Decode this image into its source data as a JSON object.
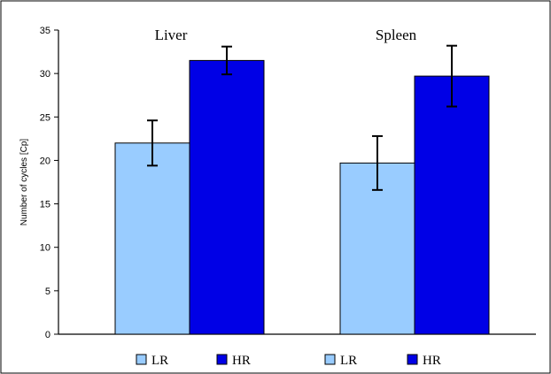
{
  "chart_data": {
    "type": "bar",
    "ylabel": "Number of cycles [Cp]",
    "ylim": [
      0,
      35
    ],
    "yticks": [
      0,
      5,
      10,
      15,
      20,
      25,
      30,
      35
    ],
    "groups": [
      "Liver",
      "Spleen"
    ],
    "series": [
      {
        "name": "LR",
        "color": "#99ccff",
        "values": [
          22.0,
          19.7
        ],
        "errors": [
          2.6,
          3.1
        ]
      },
      {
        "name": "HR",
        "color": "#0000e6",
        "values": [
          31.5,
          29.7
        ],
        "errors": [
          1.6,
          3.5
        ]
      }
    ],
    "legend": [
      {
        "label": "LR",
        "color": "#99ccff"
      },
      {
        "label": "HR",
        "color": "#0000e6"
      },
      {
        "label": "LR",
        "color": "#99ccff"
      },
      {
        "label": "HR",
        "color": "#0000e6"
      }
    ],
    "legend_position": "bottom",
    "grid": false
  }
}
